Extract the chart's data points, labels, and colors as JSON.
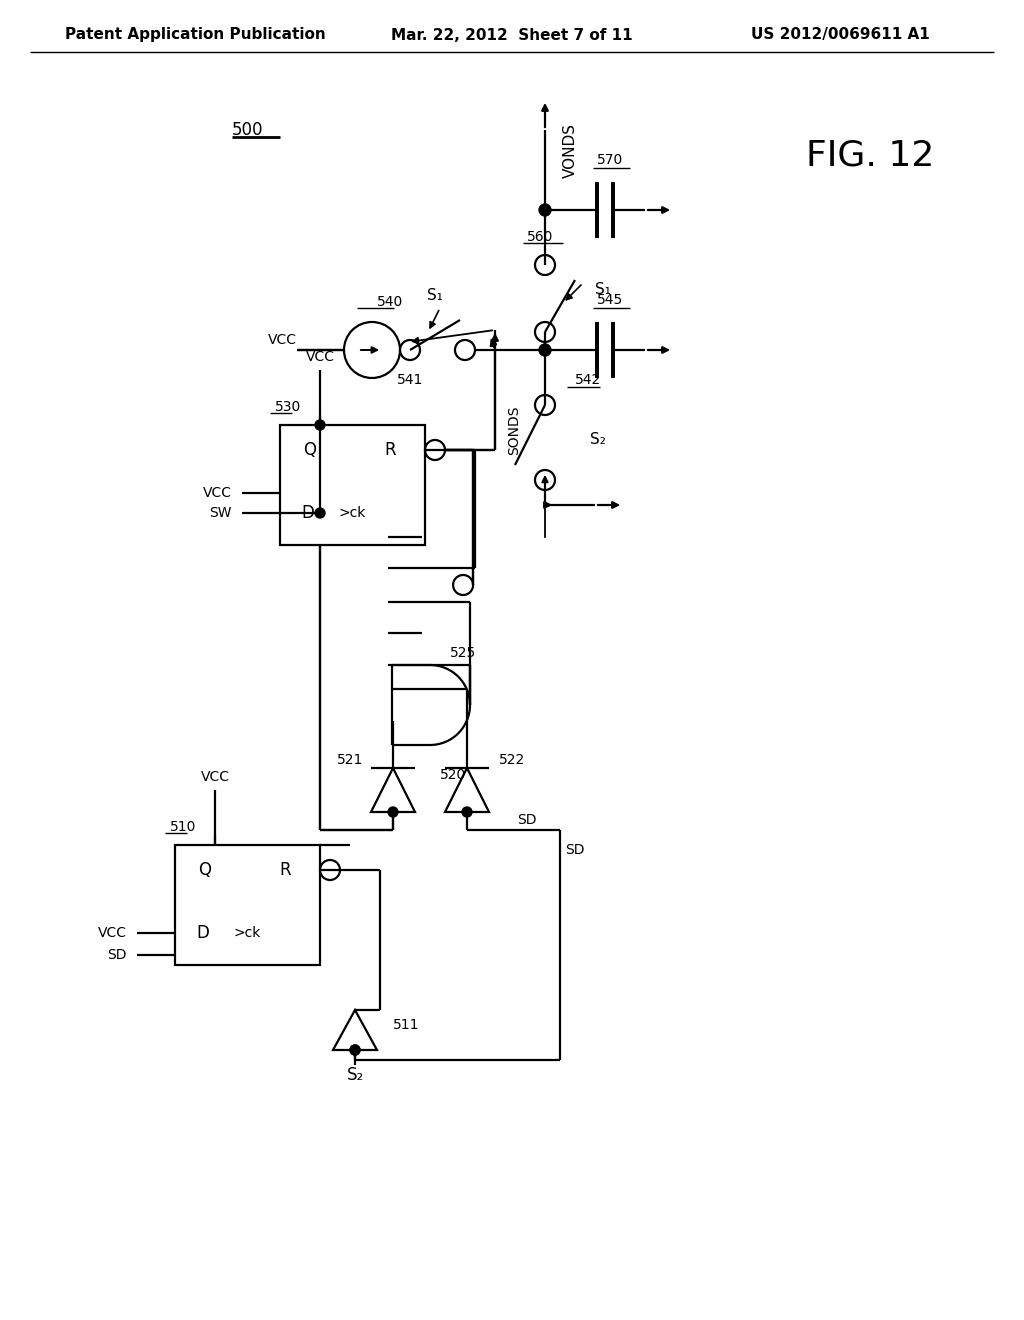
{
  "title_left": "Patent Application Publication",
  "title_mid": "Mar. 22, 2012  Sheet 7 of 11",
  "title_right": "US 2012/0069611 A1",
  "bg_color": "#ffffff",
  "line_color": "#000000",
  "lw": 1.6
}
